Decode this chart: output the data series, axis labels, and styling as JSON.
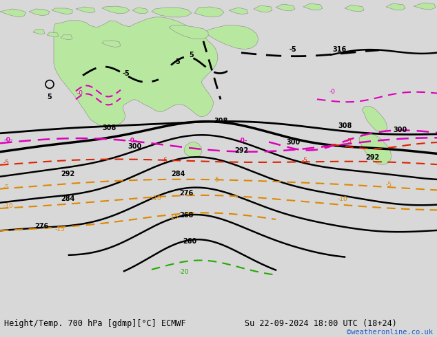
{
  "title_left": "Height/Temp. 700 hPa [gdmp][°C] ECMWF",
  "title_right": "Su 22-09-2024 18:00 UTC (18+24)",
  "credit": "©weatheronline.co.uk",
  "bg_color": "#d8d8d8",
  "ocean_color": "#d8d8d8",
  "land_color": "#b8e8a0",
  "land_edge": "#888888",
  "figsize": [
    6.34,
    4.9
  ],
  "dpi": 100
}
